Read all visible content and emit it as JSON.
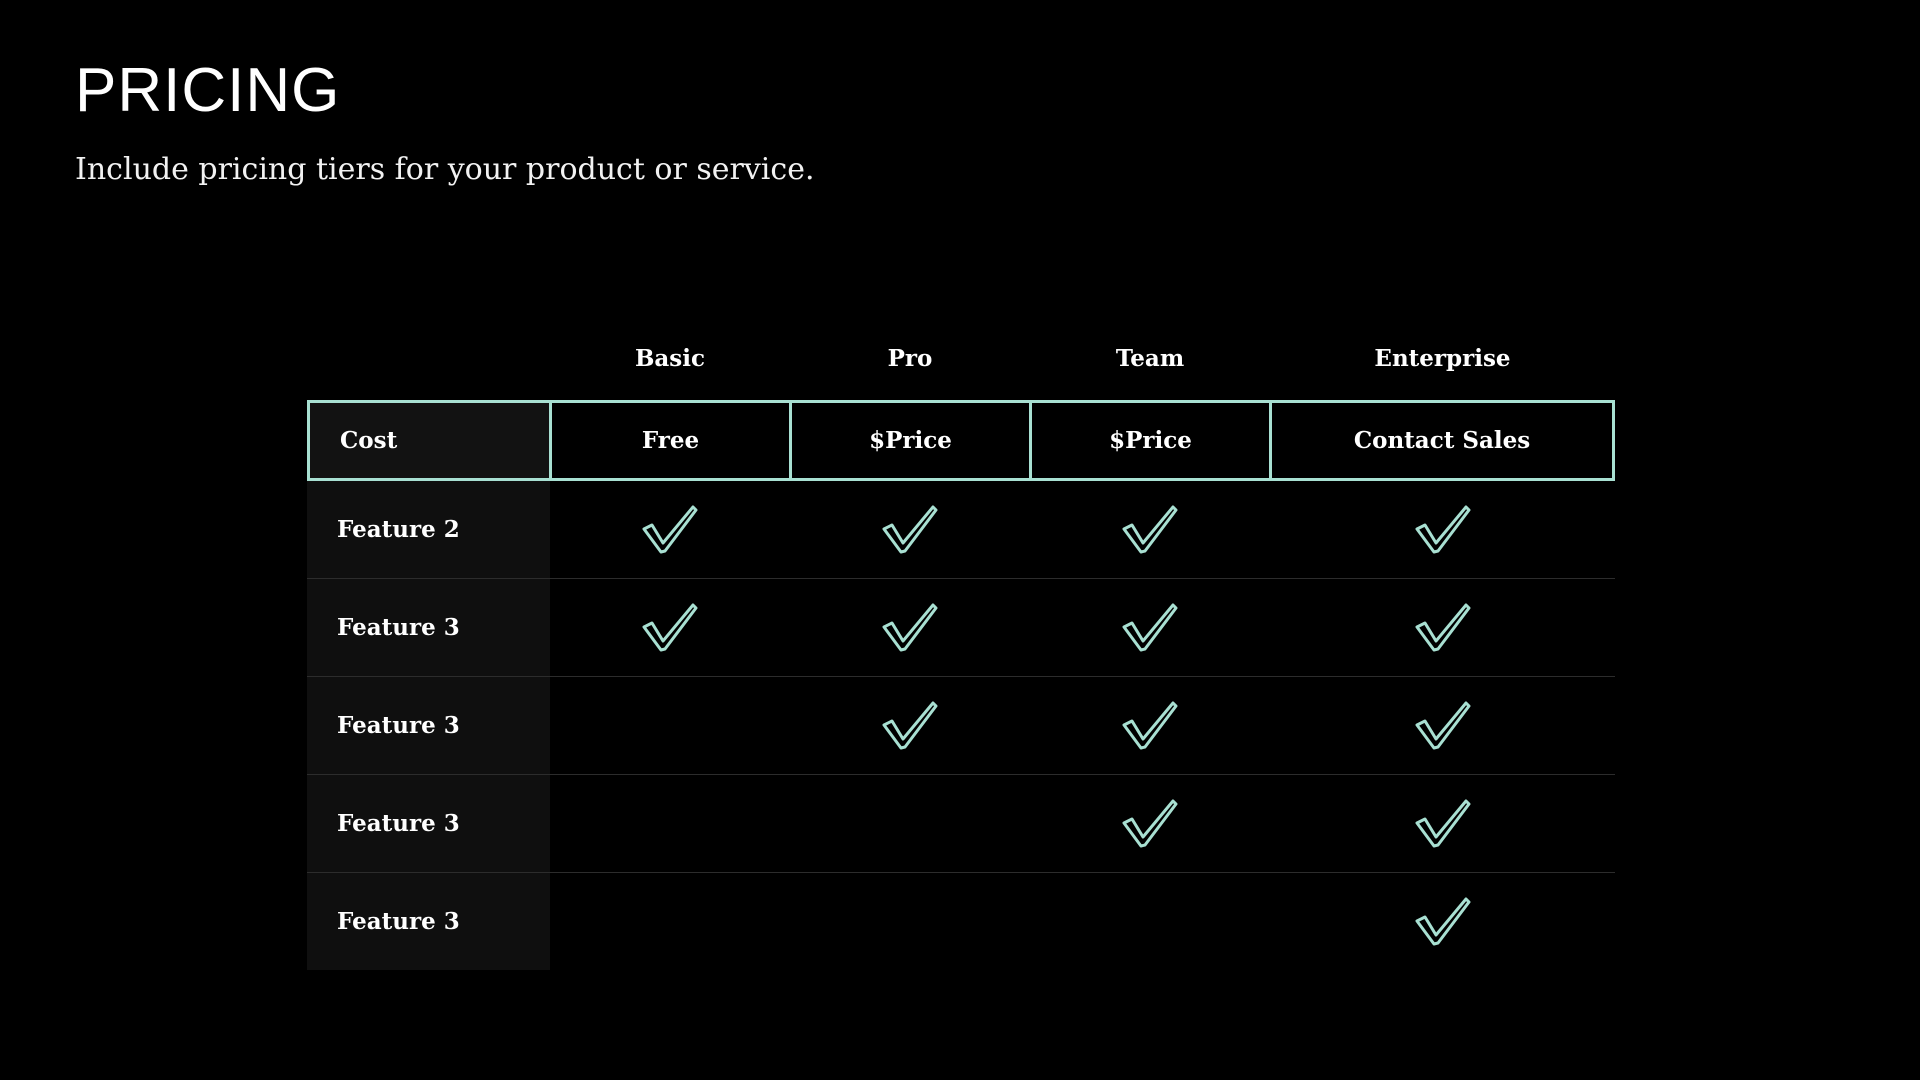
{
  "slide": {
    "title": "PRICING",
    "subtitle": "Include pricing tiers for your product or service."
  },
  "colors": {
    "background": "#000000",
    "accent": "#a8e0d2",
    "label_column_bg": "#0f0f0f",
    "row_divider": "#2c2c2c"
  },
  "table": {
    "tiers": [
      "Basic",
      "Pro",
      "Team",
      "Enterprise"
    ],
    "cost_row": {
      "label": "Cost",
      "values": [
        "Free",
        "$Price",
        "$Price",
        "Contact Sales"
      ]
    },
    "features": [
      {
        "label": "Feature 2",
        "included": [
          true,
          true,
          true,
          true
        ]
      },
      {
        "label": "Feature 3",
        "included": [
          true,
          true,
          true,
          true
        ]
      },
      {
        "label": "Feature 3",
        "included": [
          false,
          true,
          true,
          true
        ]
      },
      {
        "label": "Feature 3",
        "included": [
          false,
          false,
          true,
          true
        ]
      },
      {
        "label": "Feature 3",
        "included": [
          false,
          false,
          false,
          true
        ]
      }
    ],
    "check_icon": "checkmark-icon"
  }
}
